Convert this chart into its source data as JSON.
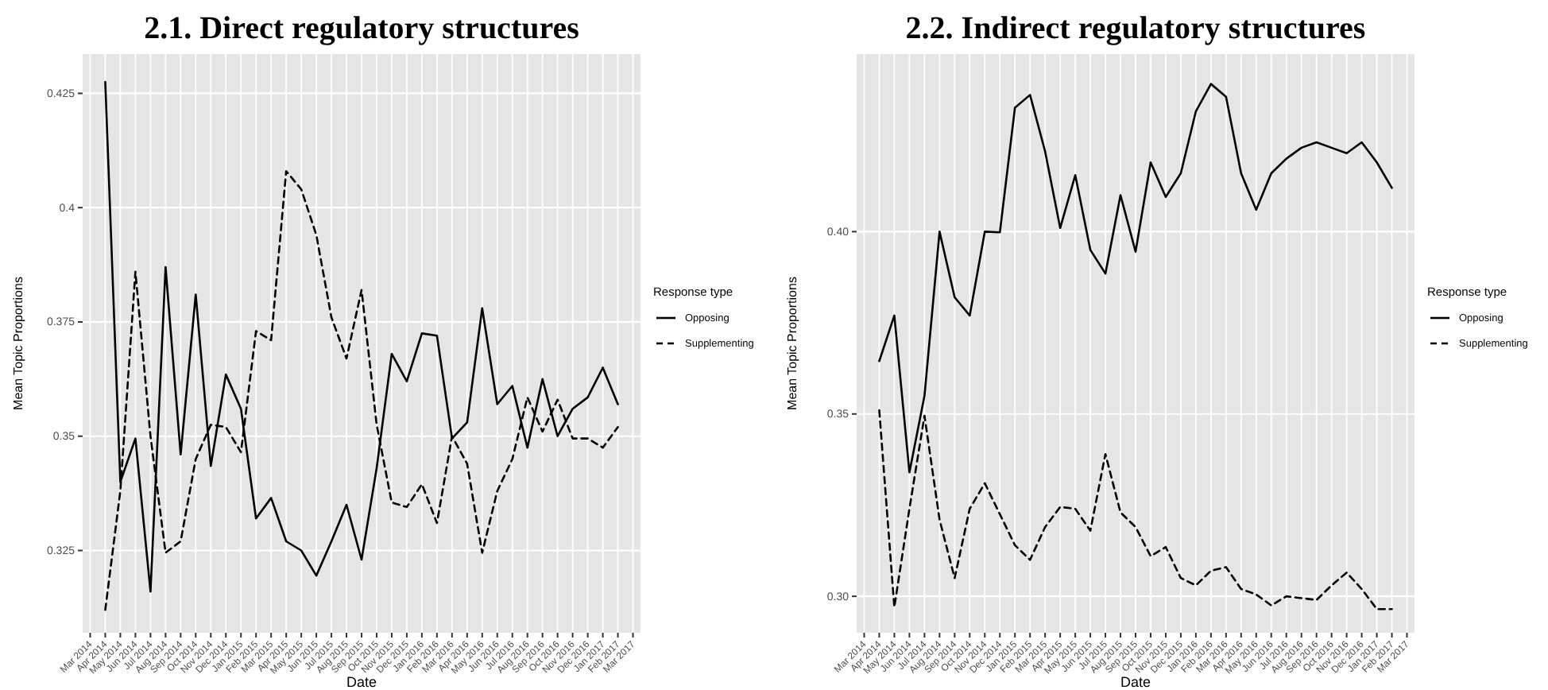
{
  "chart_data": [
    {
      "type": "line",
      "title": "2.1. Direct regulatory structures",
      "xlabel": "Date",
      "ylabel": "Mean Topic Proportions",
      "legend_title": "Response type",
      "legend": "right",
      "grid": true,
      "categories": [
        "Mar 2014",
        "Apr 2014",
        "May 2014",
        "Jun 2014",
        "Jul 2014",
        "Aug 2014",
        "Sep 2014",
        "Oct 2014",
        "Nov 2014",
        "Dec 2014",
        "Jan 2015",
        "Feb 2015",
        "Mar 2015",
        "Apr 2015",
        "May 2015",
        "Jun 2015",
        "Jul 2015",
        "Aug 2015",
        "Sep 2015",
        "Oct 2015",
        "Nov 2015",
        "Dec 2015",
        "Jan 2016",
        "Feb 2016",
        "Mar 2016",
        "Apr 2016",
        "May 2016",
        "Jun 2016",
        "Jul 2016",
        "Aug 2016",
        "Sep 2016",
        "Oct 2016",
        "Nov 2016",
        "Dec 2016",
        "Jan 2017",
        "Feb 2017",
        "Mar 2017"
      ],
      "ylim": [
        0.307,
        0.4336
      ],
      "yticks": [
        0.325,
        0.35,
        0.375,
        0.4,
        0.425
      ],
      "series": [
        {
          "name": "Opposing",
          "color": "#000000",
          "line_style": "solid",
          "values": [
            null,
            0.4275,
            0.34,
            0.3495,
            0.316,
            0.387,
            0.346,
            0.381,
            0.3435,
            0.3635,
            0.356,
            0.332,
            0.3365,
            0.327,
            0.325,
            0.3195,
            0.327,
            0.335,
            0.323,
            0.343,
            0.368,
            0.362,
            0.3725,
            0.372,
            0.3495,
            0.353,
            0.378,
            0.357,
            0.361,
            0.3475,
            0.3625,
            0.35,
            0.356,
            0.3585,
            0.365,
            0.357,
            null
          ]
        },
        {
          "name": "Supplementing",
          "color": "#000000",
          "line_style": "dashed",
          "values": [
            null,
            0.312,
            0.338,
            0.386,
            0.35,
            0.3245,
            0.327,
            0.345,
            0.3525,
            0.352,
            0.3465,
            0.373,
            0.371,
            0.408,
            0.404,
            0.394,
            0.376,
            0.367,
            0.382,
            0.3525,
            0.3355,
            0.3345,
            0.3395,
            0.331,
            0.35,
            0.344,
            0.3245,
            0.338,
            0.345,
            0.3585,
            0.351,
            0.358,
            0.3495,
            0.3495,
            0.3475,
            0.352,
            null
          ]
        }
      ]
    },
    {
      "type": "line",
      "title": "2.2. Indirect regulatory structures",
      "xlabel": "Date",
      "ylabel": "Mean Topic Proportions",
      "legend_title": "Response type",
      "legend": "right",
      "grid": true,
      "categories": [
        "Mar 2014",
        "Apr 2014",
        "May 2014",
        "Jun 2014",
        "Jul 2014",
        "Aug 2014",
        "Sep 2014",
        "Oct 2014",
        "Nov 2014",
        "Dec 2014",
        "Jan 2015",
        "Feb 2015",
        "Mar 2015",
        "Apr 2015",
        "May 2015",
        "Jun 2015",
        "Jul 2015",
        "Aug 2015",
        "Sep 2015",
        "Oct 2015",
        "Nov 2015",
        "Dec 2015",
        "Jan 2016",
        "Feb 2016",
        "Mar 2016",
        "Apr 2016",
        "May 2016",
        "Jun 2016",
        "Jul 2016",
        "Aug 2016",
        "Sep 2016",
        "Oct 2016",
        "Nov 2016",
        "Dec 2016",
        "Jan 2017",
        "Feb 2017",
        "Mar 2017"
      ],
      "ylim": [
        0.29,
        0.4487
      ],
      "yticks": [
        {
          "value": 0.3,
          "label": "0.30"
        },
        {
          "value": 0.35,
          "label": "0.35"
        },
        {
          "value": 0.4,
          "label": "0.40"
        }
      ],
      "series": [
        {
          "name": "Opposing",
          "color": "#000000",
          "line_style": "solid",
          "values": [
            null,
            0.3645,
            0.377,
            0.334,
            0.355,
            0.4,
            0.382,
            0.377,
            0.4,
            0.3998,
            0.434,
            0.4375,
            0.422,
            0.401,
            0.4155,
            0.395,
            0.3885,
            0.41,
            0.3945,
            0.419,
            0.4095,
            0.416,
            0.433,
            0.4405,
            0.437,
            0.416,
            0.406,
            0.416,
            0.42,
            0.423,
            0.4245,
            0.423,
            0.4215,
            0.4245,
            0.419,
            0.412,
            null
          ]
        },
        {
          "name": "Supplementing",
          "color": "#000000",
          "line_style": "dashed",
          "values": [
            null,
            0.351,
            0.297,
            0.324,
            0.3495,
            0.321,
            0.305,
            0.324,
            0.331,
            0.3225,
            0.314,
            0.31,
            0.319,
            0.3245,
            0.324,
            0.318,
            0.339,
            0.323,
            0.319,
            0.311,
            0.3135,
            0.305,
            0.303,
            0.307,
            0.308,
            0.302,
            0.3005,
            0.2975,
            0.3,
            0.2995,
            0.299,
            0.303,
            0.3065,
            0.302,
            0.2965,
            0.2965,
            null
          ]
        }
      ]
    }
  ]
}
